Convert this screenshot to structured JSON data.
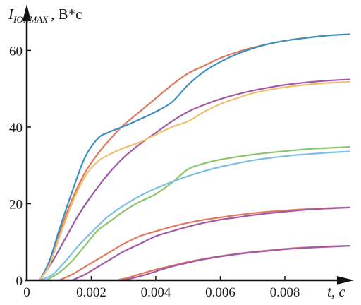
{
  "chart_data": {
    "type": "line",
    "title": "",
    "ylabel": {
      "main": "I",
      "subscript": "IONMAX",
      "unit": ", В*с"
    },
    "xlabel": "t, c",
    "xlim": [
      0,
      0.0101
    ],
    "ylim": [
      0,
      68
    ],
    "xticks": [
      0,
      0.002,
      0.004,
      0.006,
      0.008
    ],
    "xtick_labels": [
      "0",
      "0.002",
      "0.004",
      "0.006",
      "0.008"
    ],
    "yticks": [
      0,
      20,
      40,
      60
    ],
    "ytick_labels": [
      "0",
      "20",
      "40",
      "60"
    ],
    "grid": false,
    "legend": "none",
    "series": [
      {
        "color": "#e2785a",
        "x": [
          0.0004,
          0.0007,
          0.001,
          0.0014,
          0.0018,
          0.0022,
          0.0026,
          0.003,
          0.0035,
          0.004,
          0.0045,
          0.005,
          0.0055,
          0.006,
          0.0065,
          0.007,
          0.0075,
          0.008,
          0.0085,
          0.009,
          0.0095,
          0.01
        ],
        "y": [
          0,
          4,
          12,
          21,
          28,
          33,
          37,
          40.5,
          44,
          47.5,
          51,
          54,
          56,
          58,
          59.5,
          60.7,
          61.7,
          62.5,
          63.1,
          63.6,
          64.0,
          64.2
        ]
      },
      {
        "color": "#3b8fc4",
        "x": [
          0.0004,
          0.0007,
          0.001,
          0.0014,
          0.0018,
          0.0022,
          0.0025,
          0.0028,
          0.0031,
          0.0035,
          0.004,
          0.0045,
          0.005,
          0.0055,
          0.006,
          0.0065,
          0.007,
          0.0075,
          0.008,
          0.0085,
          0.009,
          0.0095,
          0.01
        ],
        "y": [
          0,
          5,
          13,
          23,
          32,
          37,
          38.5,
          39.5,
          40.5,
          42,
          44,
          46.5,
          51,
          54.5,
          57,
          59,
          60.5,
          61.7,
          62.5,
          63.1,
          63.6,
          64.0,
          64.2
        ]
      },
      {
        "color": "#a05aa8",
        "x": [
          0.0004,
          0.0008,
          0.0012,
          0.0016,
          0.002,
          0.0025,
          0.003,
          0.0035,
          0.004,
          0.0045,
          0.005,
          0.0055,
          0.006,
          0.0065,
          0.007,
          0.0075,
          0.008,
          0.0085,
          0.009,
          0.0095,
          0.01
        ],
        "y": [
          0,
          5,
          11,
          17,
          22,
          27.5,
          32,
          35.5,
          38.5,
          41.5,
          44,
          45.8,
          47.3,
          48.5,
          49.5,
          50.3,
          51,
          51.5,
          51.9,
          52.2,
          52.4
        ]
      },
      {
        "color": "#f0c070",
        "x": [
          0.0004,
          0.0007,
          0.001,
          0.0014,
          0.0018,
          0.0022,
          0.0026,
          0.003,
          0.0035,
          0.004,
          0.0045,
          0.005,
          0.0055,
          0.006,
          0.0065,
          0.007,
          0.0075,
          0.008,
          0.0085,
          0.009,
          0.0095,
          0.01
        ],
        "y": [
          0,
          4,
          11,
          20,
          27,
          31,
          33,
          34.5,
          36,
          38,
          40,
          41.5,
          44,
          46,
          47.5,
          48.8,
          49.7,
          50.4,
          50.9,
          51.3,
          51.6,
          51.8
        ]
      },
      {
        "color": "#8cc46c",
        "x": [
          0.0006,
          0.001,
          0.0014,
          0.0018,
          0.0022,
          0.0026,
          0.003,
          0.0035,
          0.004,
          0.0045,
          0.005,
          0.0055,
          0.006,
          0.0065,
          0.007,
          0.0075,
          0.008,
          0.0085,
          0.009,
          0.0095,
          0.01
        ],
        "y": [
          0,
          2,
          5,
          9,
          13,
          15.5,
          18,
          20.5,
          22.5,
          25.5,
          29,
          30.5,
          31.5,
          32.2,
          32.8,
          33.3,
          33.7,
          34.1,
          34.4,
          34.6,
          34.8
        ]
      },
      {
        "color": "#7cc0e4",
        "x": [
          0.0004,
          0.0008,
          0.0012,
          0.0016,
          0.002,
          0.0025,
          0.003,
          0.0035,
          0.004,
          0.0045,
          0.005,
          0.0055,
          0.006,
          0.0065,
          0.007,
          0.0075,
          0.008,
          0.0085,
          0.009,
          0.0095,
          0.01
        ],
        "y": [
          0,
          1.5,
          5,
          9,
          12.5,
          16.5,
          19.5,
          22,
          24,
          25.7,
          27.2,
          28.5,
          29.6,
          30.5,
          31.3,
          31.9,
          32.4,
          32.8,
          33.1,
          33.4,
          33.6
        ]
      },
      {
        "color": "#e2785a",
        "x": [
          0.001,
          0.0014,
          0.0018,
          0.0022,
          0.0026,
          0.003,
          0.0035,
          0.004,
          0.0045,
          0.005,
          0.0055,
          0.006,
          0.0065,
          0.007,
          0.0075,
          0.008,
          0.0085,
          0.009,
          0.0095,
          0.01
        ],
        "y": [
          0,
          1.5,
          3.5,
          5.5,
          7.5,
          9.5,
          11.5,
          12.8,
          14,
          15,
          15.8,
          16.4,
          17,
          17.5,
          17.9,
          18.2,
          18.5,
          18.7,
          18.9,
          19.0
        ]
      },
      {
        "color": "#a05aa8",
        "x": [
          0.0014,
          0.0018,
          0.0022,
          0.0026,
          0.003,
          0.0035,
          0.004,
          0.0045,
          0.005,
          0.0055,
          0.006,
          0.0065,
          0.007,
          0.0075,
          0.008,
          0.0085,
          0.009,
          0.0095,
          0.01
        ],
        "y": [
          0,
          1.5,
          3.5,
          5.5,
          7.5,
          9.5,
          11.5,
          12.8,
          14,
          15,
          15.8,
          16.4,
          17,
          17.5,
          17.9,
          18.3,
          18.6,
          18.8,
          19.0
        ]
      },
      {
        "color": "#e2785a",
        "x": [
          0.0028,
          0.0031,
          0.0035,
          0.004,
          0.0045,
          0.005,
          0.0055,
          0.006,
          0.0065,
          0.007,
          0.0075,
          0.008,
          0.0085,
          0.009,
          0.0095,
          0.01
        ],
        "y": [
          0,
          0.6,
          1.6,
          2.8,
          3.8,
          4.8,
          5.6,
          6.3,
          6.9,
          7.4,
          7.8,
          8.2,
          8.5,
          8.7,
          8.9,
          9.0
        ]
      },
      {
        "color": "#a05aa8",
        "x": [
          0.003,
          0.0033,
          0.0037,
          0.0041,
          0.0045,
          0.005,
          0.0055,
          0.006,
          0.0065,
          0.007,
          0.0075,
          0.008,
          0.0085,
          0.009,
          0.0095,
          0.01
        ],
        "y": [
          0,
          0.6,
          1.5,
          2.6,
          3.6,
          4.6,
          5.5,
          6.2,
          6.8,
          7.3,
          7.7,
          8.1,
          8.4,
          8.6,
          8.8,
          9.0
        ]
      }
    ]
  }
}
